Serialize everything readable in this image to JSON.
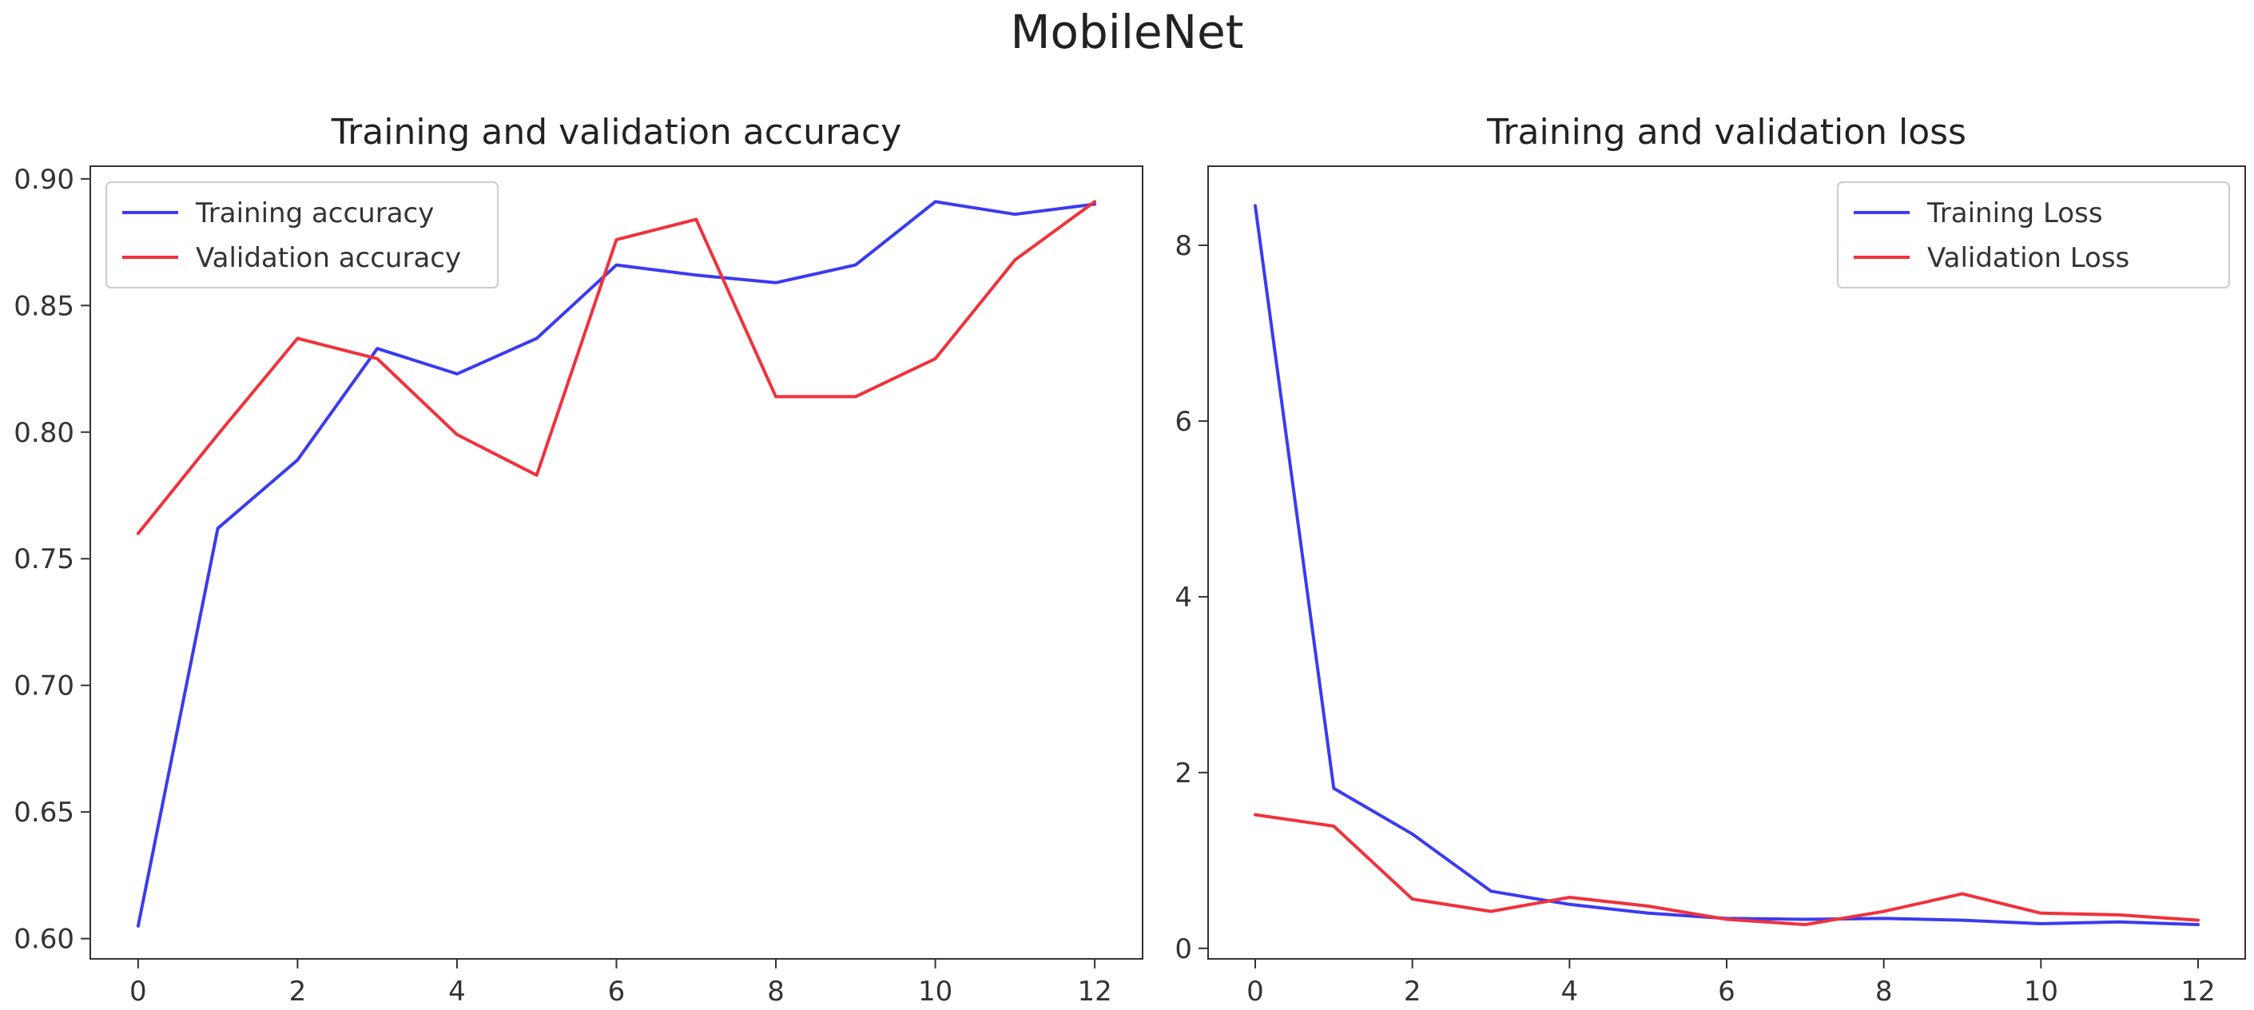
{
  "figure": {
    "title": "MobileNet"
  },
  "chart_data": [
    {
      "type": "line",
      "title": "Training and validation accuracy",
      "xlabel": "",
      "ylabel": "",
      "x": [
        0,
        1,
        2,
        3,
        4,
        5,
        6,
        7,
        8,
        9,
        10,
        11,
        12
      ],
      "xlim": [
        -0.6,
        12.6
      ],
      "ylim": [
        0.592,
        0.905
      ],
      "xticks": [
        0,
        2,
        4,
        6,
        8,
        10,
        12
      ],
      "xtick_labels": [
        "0",
        "2",
        "4",
        "6",
        "8",
        "10",
        "12"
      ],
      "yticks": [
        0.6,
        0.65,
        0.7,
        0.75,
        0.8,
        0.85,
        0.9
      ],
      "ytick_labels": [
        "0.60",
        "0.65",
        "0.70",
        "0.75",
        "0.80",
        "0.85",
        "0.90"
      ],
      "grid": false,
      "legend": "upper-left",
      "series": [
        {
          "name": "Training accuracy",
          "color": "#3b3bf0",
          "values": [
            0.605,
            0.762,
            0.789,
            0.833,
            0.823,
            0.837,
            0.866,
            0.862,
            0.859,
            0.866,
            0.891,
            0.886,
            0.89
          ]
        },
        {
          "name": "Validation accuracy",
          "color": "#f0323c",
          "values": [
            0.76,
            0.799,
            0.837,
            0.829,
            0.799,
            0.783,
            0.876,
            0.884,
            0.814,
            0.814,
            0.829,
            0.868,
            0.891
          ]
        }
      ]
    },
    {
      "type": "line",
      "title": "Training and validation loss",
      "xlabel": "",
      "ylabel": "",
      "x": [
        0,
        1,
        2,
        3,
        4,
        5,
        6,
        7,
        8,
        9,
        10,
        11,
        12
      ],
      "xlim": [
        -0.6,
        12.6
      ],
      "ylim": [
        -0.12,
        8.9
      ],
      "xticks": [
        0,
        2,
        4,
        6,
        8,
        10,
        12
      ],
      "xtick_labels": [
        "0",
        "2",
        "4",
        "6",
        "8",
        "10",
        "12"
      ],
      "yticks": [
        0,
        2,
        4,
        6,
        8
      ],
      "ytick_labels": [
        "0",
        "2",
        "4",
        "6",
        "8"
      ],
      "grid": false,
      "legend": "upper-right",
      "series": [
        {
          "name": "Training Loss",
          "color": "#3b3bf0",
          "values": [
            8.45,
            1.82,
            1.3,
            0.65,
            0.5,
            0.4,
            0.34,
            0.33,
            0.34,
            0.32,
            0.28,
            0.3,
            0.27
          ]
        },
        {
          "name": "Validation Loss",
          "color": "#f0323c",
          "values": [
            1.52,
            1.39,
            0.56,
            0.42,
            0.58,
            0.48,
            0.33,
            0.27,
            0.42,
            0.62,
            0.4,
            0.38,
            0.32
          ]
        }
      ]
    }
  ]
}
